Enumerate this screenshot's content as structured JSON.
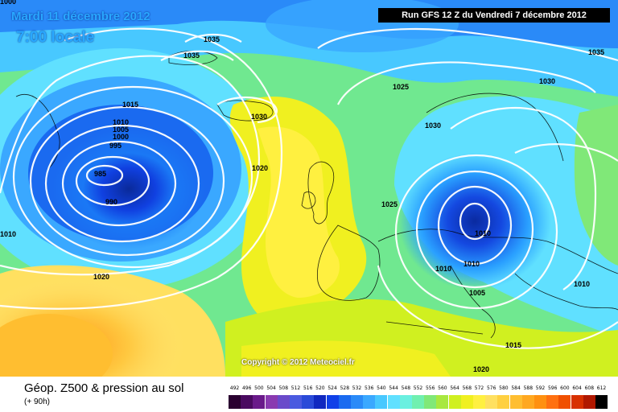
{
  "header": {
    "date": "Mardi 11 décembre 2012",
    "local_time": "7:00 locale",
    "run": "Run GFS 12 Z du Vendredi 7 décembre 2012"
  },
  "copyright": "Copyright © 2012 Meteociel.fr",
  "footer": {
    "title": "Géop. Z500 & pression au sol",
    "subtitle": "(+ 90h)"
  },
  "legend": {
    "ticks": [
      "492",
      "496",
      "500",
      "504",
      "508",
      "512",
      "516",
      "520",
      "524",
      "528",
      "532",
      "536",
      "540",
      "544",
      "548",
      "552",
      "556",
      "560",
      "564",
      "568",
      "572",
      "576",
      "580",
      "584",
      "588",
      "592",
      "596",
      "600",
      "604",
      "608",
      "612"
    ],
    "colors": [
      "#2a0030",
      "#4a0a60",
      "#6a1a8a",
      "#8a3ab0",
      "#6a4aca",
      "#4a5ae0",
      "#2a4ad8",
      "#1028c0",
      "#1040e8",
      "#1a6af0",
      "#2a8af8",
      "#3aa8ff",
      "#48c8ff",
      "#60e0ff",
      "#6af0e0",
      "#70f0b0",
      "#80e878",
      "#a8e840",
      "#d0f020",
      "#f0f020",
      "#fff040",
      "#ffe060",
      "#ffd040",
      "#ffbe30",
      "#ffa820",
      "#ff9010",
      "#ff7010",
      "#f05000",
      "#d83000",
      "#b01800",
      "#000000"
    ]
  },
  "pressure_labels": [
    "1035",
    "1035",
    "1015",
    "1010",
    "1005",
    "1000",
    "995",
    "985",
    "990",
    "1030",
    "1020",
    "1025",
    "1030",
    "1030",
    "1025",
    "1010",
    "1010",
    "1010",
    "1005",
    "1015",
    "1020",
    "1035",
    "1010",
    "1020",
    "1000",
    "1010"
  ]
}
